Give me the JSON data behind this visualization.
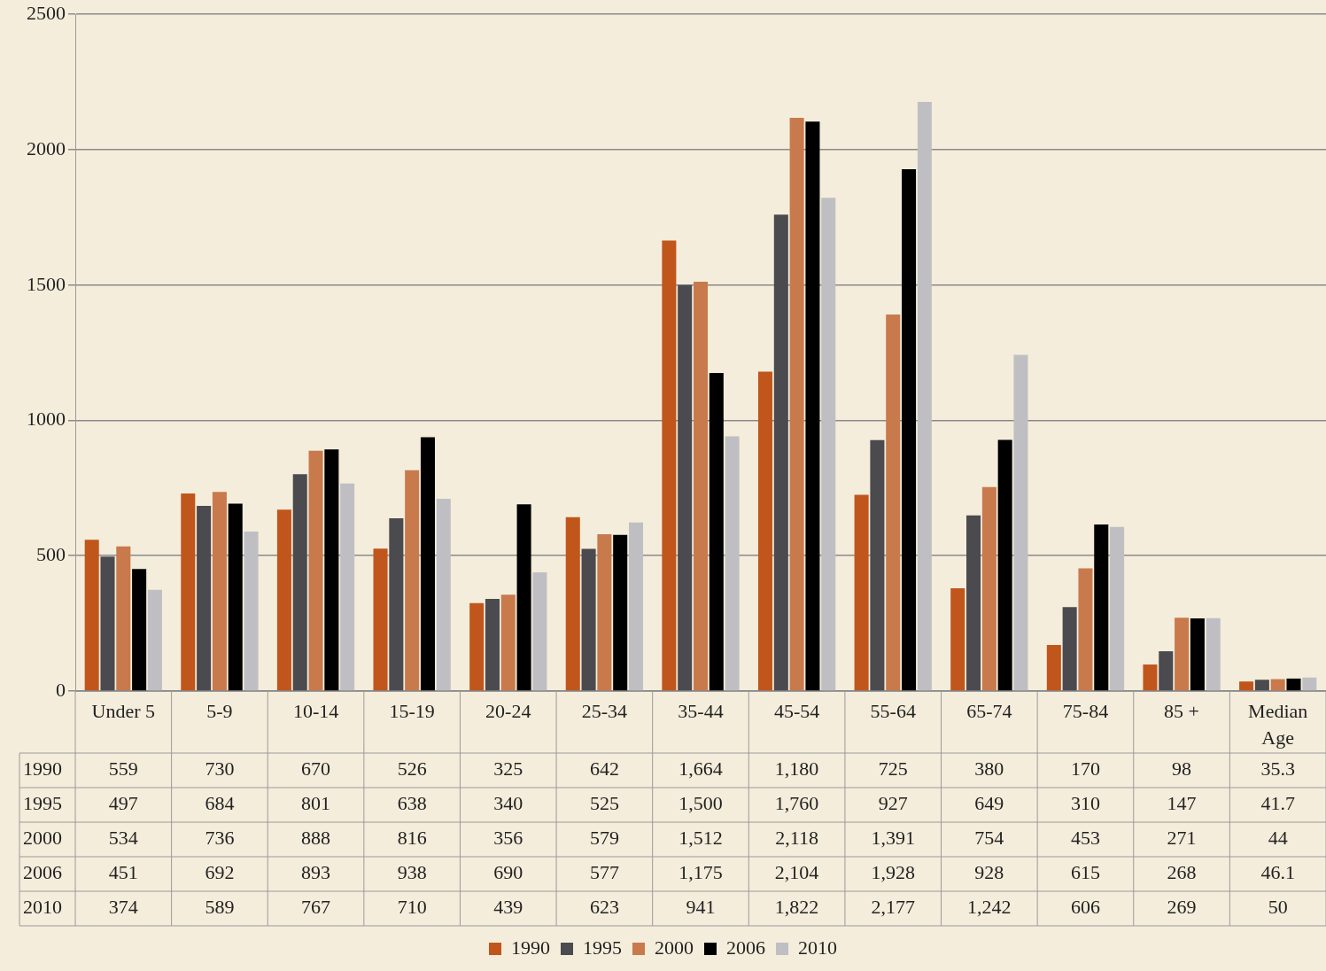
{
  "chart_data": {
    "type": "bar",
    "categories": [
      "Under 5",
      "5-9",
      "10-14",
      "15-19",
      "20-24",
      "25-34",
      "35-44",
      "45-54",
      "55-64",
      "65-74",
      "75-84",
      "85 +",
      "Median Age"
    ],
    "series": [
      {
        "name": "1990",
        "color": "#c0561c",
        "values": [
          559,
          730,
          670,
          526,
          325,
          642,
          1664,
          1180,
          725,
          380,
          170,
          98,
          35.3
        ],
        "value_labels": [
          "559",
          "730",
          "670",
          "526",
          "325",
          "642",
          "1,664",
          "1,180",
          "725",
          "380",
          "170",
          "98",
          "35.3"
        ]
      },
      {
        "name": "1995",
        "color": "#4a4a4f",
        "values": [
          497,
          684,
          801,
          638,
          340,
          525,
          1500,
          1760,
          927,
          649,
          310,
          147,
          41.7
        ],
        "value_labels": [
          "497",
          "684",
          "801",
          "638",
          "340",
          "525",
          "1,500",
          "1,760",
          "927",
          "649",
          "310",
          "147",
          "41.7"
        ]
      },
      {
        "name": "2000",
        "color": "#c87a4c",
        "values": [
          534,
          736,
          888,
          816,
          356,
          579,
          1512,
          2118,
          1391,
          754,
          453,
          271,
          44
        ],
        "value_labels": [
          "534",
          "736",
          "888",
          "816",
          "356",
          "579",
          "1,512",
          "2,118",
          "1,391",
          "754",
          "453",
          "271",
          "44"
        ]
      },
      {
        "name": "2006",
        "color": "#000000",
        "values": [
          451,
          692,
          893,
          938,
          690,
          577,
          1175,
          2104,
          1928,
          928,
          615,
          268,
          46.1
        ],
        "value_labels": [
          "451",
          "692",
          "893",
          "938",
          "690",
          "577",
          "1,175",
          "2,104",
          "1,928",
          "928",
          "615",
          "268",
          "46.1"
        ]
      },
      {
        "name": "2010",
        "color": "#bfbfc3",
        "values": [
          374,
          589,
          767,
          710,
          439,
          623,
          941,
          1822,
          2177,
          1242,
          606,
          269,
          50
        ],
        "value_labels": [
          "374",
          "589",
          "767",
          "710",
          "439",
          "623",
          "941",
          "1,822",
          "2,177",
          "1,242",
          "606",
          "269",
          "50"
        ]
      }
    ],
    "ylim": [
      0,
      2500
    ],
    "yticks": [
      0,
      500,
      1000,
      1500,
      2000,
      2500
    ],
    "grid": "y",
    "legend": "bottom"
  }
}
